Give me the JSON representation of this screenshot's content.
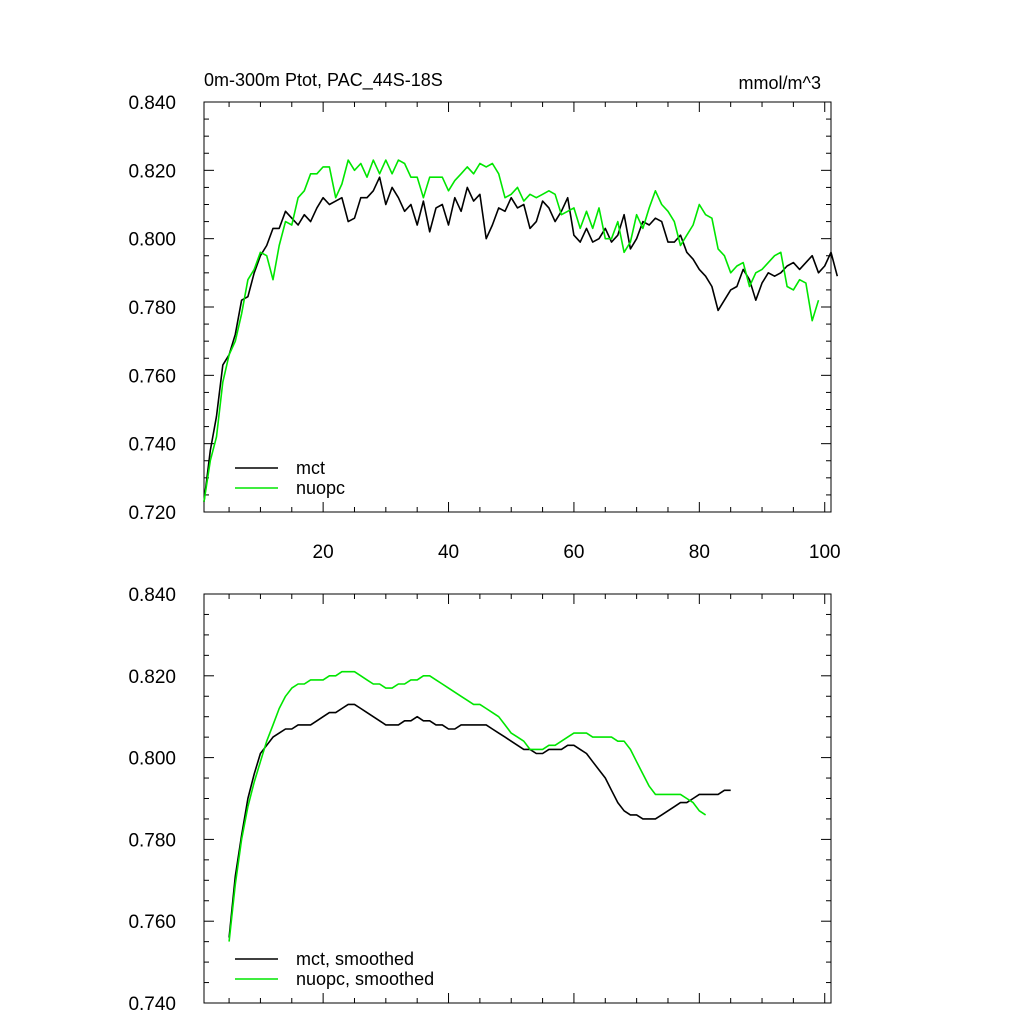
{
  "chart_data": [
    {
      "type": "line",
      "title": "0m-300m Ptot, PAC_44S-18S",
      "units": "mmol/m^3",
      "xlim": [
        1,
        101
      ],
      "ylim": [
        0.72,
        0.84
      ],
      "yticks": [
        "0.720",
        "0.740",
        "0.760",
        "0.780",
        "0.800",
        "0.820",
        "0.840"
      ],
      "xticks": [
        "20",
        "40",
        "60",
        "80",
        "100"
      ],
      "legend_position": "bottom-left",
      "series": [
        {
          "name": "mct",
          "color": "#000000",
          "x_start": 1,
          "values": [
            0.723,
            0.738,
            0.748,
            0.763,
            0.766,
            0.772,
            0.782,
            0.783,
            0.79,
            0.795,
            0.798,
            0.803,
            0.803,
            0.808,
            0.806,
            0.804,
            0.807,
            0.805,
            0.809,
            0.812,
            0.81,
            0.811,
            0.812,
            0.805,
            0.806,
            0.812,
            0.812,
            0.814,
            0.818,
            0.81,
            0.815,
            0.812,
            0.808,
            0.81,
            0.804,
            0.811,
            0.802,
            0.809,
            0.81,
            0.804,
            0.812,
            0.808,
            0.815,
            0.811,
            0.813,
            0.8,
            0.804,
            0.809,
            0.808,
            0.812,
            0.809,
            0.81,
            0.803,
            0.805,
            0.811,
            0.809,
            0.805,
            0.808,
            0.812,
            0.801,
            0.799,
            0.803,
            0.799,
            0.8,
            0.803,
            0.799,
            0.801,
            0.807,
            0.797,
            0.8,
            0.805,
            0.804,
            0.806,
            0.805,
            0.799,
            0.799,
            0.801,
            0.796,
            0.794,
            0.791,
            0.789,
            0.786,
            0.779,
            0.782,
            0.785,
            0.786,
            0.791,
            0.788,
            0.782,
            0.787,
            0.79,
            0.789,
            0.79,
            0.792,
            0.793,
            0.791,
            0.793,
            0.795,
            0.79,
            0.792,
            0.796,
            0.789
          ]
        },
        {
          "name": "nuopc",
          "color": "#00e600",
          "x_start": 1,
          "values": [
            0.723,
            0.735,
            0.742,
            0.758,
            0.766,
            0.77,
            0.778,
            0.788,
            0.791,
            0.796,
            0.795,
            0.788,
            0.798,
            0.805,
            0.804,
            0.812,
            0.814,
            0.819,
            0.819,
            0.821,
            0.821,
            0.812,
            0.816,
            0.823,
            0.82,
            0.822,
            0.818,
            0.823,
            0.819,
            0.823,
            0.819,
            0.823,
            0.822,
            0.818,
            0.818,
            0.812,
            0.818,
            0.818,
            0.818,
            0.814,
            0.817,
            0.819,
            0.821,
            0.819,
            0.822,
            0.821,
            0.822,
            0.819,
            0.812,
            0.813,
            0.815,
            0.811,
            0.813,
            0.812,
            0.813,
            0.814,
            0.813,
            0.807,
            0.808,
            0.809,
            0.803,
            0.808,
            0.803,
            0.809,
            0.8,
            0.8,
            0.805,
            0.796,
            0.799,
            0.807,
            0.803,
            0.809,
            0.814,
            0.81,
            0.808,
            0.805,
            0.798,
            0.801,
            0.804,
            0.81,
            0.807,
            0.806,
            0.797,
            0.795,
            0.79,
            0.792,
            0.793,
            0.786,
            0.79,
            0.791,
            0.793,
            0.795,
            0.796,
            0.786,
            0.785,
            0.788,
            0.787,
            0.776,
            0.782
          ]
        }
      ]
    },
    {
      "type": "line",
      "title": "",
      "xlim": [
        1,
        101
      ],
      "ylim": [
        0.74,
        0.84
      ],
      "yticks": [
        "0.740",
        "0.760",
        "0.780",
        "0.800",
        "0.820",
        "0.840"
      ],
      "xticks": [],
      "legend_position": "bottom-left",
      "series": [
        {
          "name": "mct, smoothed",
          "color": "#000000",
          "x_start": 5,
          "values": [
            0.756,
            0.771,
            0.781,
            0.79,
            0.796,
            0.801,
            0.803,
            0.805,
            0.806,
            0.807,
            0.807,
            0.808,
            0.808,
            0.808,
            0.809,
            0.81,
            0.811,
            0.811,
            0.812,
            0.813,
            0.813,
            0.812,
            0.811,
            0.81,
            0.809,
            0.808,
            0.808,
            0.808,
            0.809,
            0.809,
            0.81,
            0.809,
            0.809,
            0.808,
            0.808,
            0.807,
            0.807,
            0.808,
            0.808,
            0.808,
            0.808,
            0.808,
            0.807,
            0.806,
            0.805,
            0.804,
            0.803,
            0.802,
            0.802,
            0.801,
            0.801,
            0.802,
            0.802,
            0.802,
            0.803,
            0.803,
            0.802,
            0.801,
            0.799,
            0.797,
            0.795,
            0.792,
            0.789,
            0.787,
            0.786,
            0.786,
            0.785,
            0.785,
            0.785,
            0.786,
            0.787,
            0.788,
            0.789,
            0.789,
            0.79,
            0.791,
            0.791,
            0.791,
            0.791,
            0.792,
            0.792
          ]
        },
        {
          "name": "nuopc, smoothed",
          "color": "#00e600",
          "x_start": 5,
          "values": [
            0.755,
            0.769,
            0.78,
            0.788,
            0.794,
            0.799,
            0.804,
            0.808,
            0.812,
            0.815,
            0.817,
            0.818,
            0.818,
            0.819,
            0.819,
            0.819,
            0.82,
            0.82,
            0.821,
            0.821,
            0.821,
            0.82,
            0.819,
            0.818,
            0.818,
            0.817,
            0.817,
            0.818,
            0.818,
            0.819,
            0.819,
            0.82,
            0.82,
            0.819,
            0.818,
            0.817,
            0.816,
            0.815,
            0.814,
            0.813,
            0.813,
            0.812,
            0.811,
            0.81,
            0.808,
            0.806,
            0.805,
            0.804,
            0.802,
            0.802,
            0.802,
            0.803,
            0.803,
            0.804,
            0.805,
            0.806,
            0.806,
            0.806,
            0.805,
            0.805,
            0.805,
            0.805,
            0.804,
            0.804,
            0.802,
            0.799,
            0.796,
            0.793,
            0.791,
            0.791,
            0.791,
            0.791,
            0.791,
            0.79,
            0.789,
            0.787,
            0.786
          ]
        }
      ]
    }
  ]
}
